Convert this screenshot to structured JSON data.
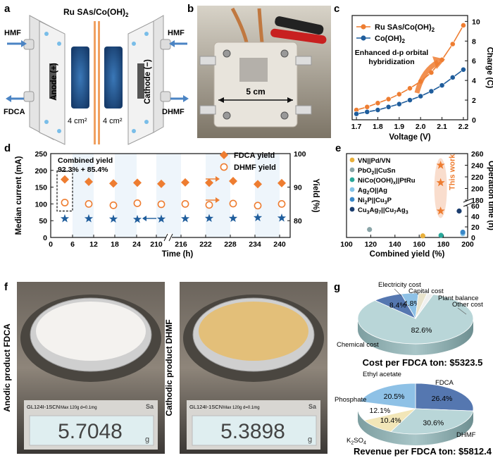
{
  "panels": {
    "a": {
      "label": "a",
      "title_main": "Ru SAs/Co(OH)",
      "title_sub": "2",
      "hmf_left": "HMF",
      "hmf_right": "HMF",
      "fdca": "FDCA",
      "dhmf": "DHMF",
      "anode": "Anode (+)",
      "cathode": "Cathode (−)",
      "area_left": "4 cm²",
      "area_right": "4 cm²"
    },
    "b": {
      "label": "b",
      "dimension": "5 cm"
    },
    "f": {
      "label": "f",
      "left_caption": "Anodic product FDCA",
      "right_caption": "Cathodic product DHMF",
      "left_scale_model": "GL124I-1SCN",
      "left_scale_spec": "Max 120g d=0.1mg",
      "right_scale_model": "GL124I-1SCN",
      "right_scale_spec": "Max 120g d=0.1mg",
      "left_reading": "5.7048",
      "right_reading": "5.3898",
      "unit": "g",
      "brand_left": "Sa",
      "brand_right": "Sa"
    }
  },
  "chart_data": [
    {
      "panel": "c",
      "type": "line",
      "title": "",
      "xlabel": "Voltage (V)",
      "ylabel": "Charge (C)",
      "xlim": [
        1.68,
        2.22
      ],
      "ylim": [
        0,
        10.6
      ],
      "xticks": [
        1.7,
        1.8,
        1.9,
        2.0,
        2.1,
        2.2
      ],
      "xtick_labels": [
        "1.7",
        "1.8",
        "1.9",
        "2.0",
        "2.1",
        "2.2"
      ],
      "yticks": [
        0,
        2,
        4,
        6,
        8,
        10
      ],
      "ytick_labels": [
        "0",
        "2",
        "4",
        "6",
        "8",
        "10"
      ],
      "x": [
        1.7,
        1.75,
        1.8,
        1.85,
        1.9,
        1.95,
        2.0,
        2.05,
        2.1,
        2.15,
        2.2
      ],
      "series": [
        {
          "name": "Ru SAs/Co(OH)2",
          "legend_main": "Ru SAs/Co(OH)",
          "legend_sub": "2",
          "color": "#ee7d31",
          "values": [
            1.0,
            1.3,
            1.7,
            2.1,
            2.6,
            3.2,
            3.9,
            4.8,
            6.1,
            7.7,
            9.6
          ]
        },
        {
          "name": "Co(OH)2",
          "legend_main": "Co(OH)",
          "legend_sub": "2",
          "color": "#1f5d9c",
          "values": [
            0.6,
            0.8,
            1.0,
            1.3,
            1.6,
            2.0,
            2.4,
            2.9,
            3.5,
            4.3,
            5.1
          ]
        }
      ],
      "annotation_line1": "Enhanced d-p orbital",
      "annotation_line2": "hybridization"
    },
    {
      "panel": "d",
      "type": "scatter",
      "xlabel": "Time (h)",
      "ylabel_left": "Median current (mA)",
      "ylabel_right": "Yield (%)",
      "left_ylim": [
        0,
        250
      ],
      "right_ylim": [
        75,
        100
      ],
      "left_yticks": [
        0,
        50,
        100,
        150,
        200,
        250
      ],
      "right_yticks": [
        80,
        90,
        100
      ],
      "xtick_labels": [
        "0",
        "6",
        "12",
        "18",
        "24",
        "210",
        "216",
        "222",
        "228",
        "234",
        "240"
      ],
      "combined_label": "Combined yield",
      "combined_value": "92.3% + 85.4%",
      "series": [
        {
          "name": "FDCA yield",
          "marker": "diamond",
          "axis": "right",
          "color": "#ee7d31",
          "values": [
            92.3,
            91.6,
            91.1,
            91.3,
            91.0,
            91.4,
            91.3,
            91.8,
            90.9,
            91.2
          ]
        },
        {
          "name": "DHMF yield",
          "marker": "circle-open",
          "axis": "right",
          "color": "#ee7d31",
          "values": [
            85.4,
            85.0,
            84.6,
            85.2,
            84.9,
            85.0,
            84.7,
            85.1,
            84.5,
            85.0
          ]
        },
        {
          "name": "Median current",
          "marker": "star",
          "axis": "left",
          "color": "#1f5d9c",
          "values": [
            56,
            56,
            55,
            54,
            55,
            56,
            57,
            57,
            59,
            58
          ]
        }
      ]
    },
    {
      "panel": "e",
      "type": "scatter",
      "xlabel": "Combined yield (%)",
      "ylabel": "Operation time (h)",
      "xlim": [
        100,
        200
      ],
      "xticks": [
        100,
        120,
        140,
        160,
        180,
        200
      ],
      "ytick_labels_lower": [
        "0",
        "20",
        "40",
        "60"
      ],
      "ytick_labels_upper": [
        "180",
        "200",
        "220",
        "240",
        "260"
      ],
      "this_work_label": "This work",
      "points": [
        {
          "name": "VN||Pd/VN",
          "name_html": "VN||Pd/VN",
          "color": "#e8b03c",
          "x": 163,
          "y": 3
        },
        {
          "name": "PbO2||CuSn",
          "name_main": "PbO",
          "name_sub": "2",
          "name_tail": "||CuSn",
          "color": "#8aa5a8",
          "x": 119,
          "y": 15
        },
        {
          "name": "NiCo(OOH)x||PtRu",
          "name_main": "NiCo(OOH)",
          "name_sub": "x",
          "name_tail": "||PtRu",
          "color": "#2aa89a",
          "x": 178,
          "y": 4
        },
        {
          "name": "Ag2O||Ag",
          "name_main": "Ag",
          "name_sub": "2",
          "name_tail": "O||Ag",
          "color": "#84c4e8",
          "x": 196,
          "y": 7
        },
        {
          "name": "Ni2P||Cu3P",
          "name_main": "Ni",
          "name_sub": "2",
          "name_tail": "P||Cu",
          "name_sub2": "3",
          "name_tail2": "P",
          "color": "#3a88c8",
          "x": 196,
          "y": 10
        },
        {
          "name": "Cu3Ag7||Cu7Ag3",
          "name_main": "Cu",
          "name_sub": "3",
          "name_tail": "Ag",
          "name_sub2": "7",
          "name_tail2": "||Cu",
          "name_sub3": "7",
          "name_tail3": "Ag",
          "name_sub4": "3",
          "color": "#1b3d6e",
          "x": 193,
          "y": 50
        }
      ],
      "this_work_points": [
        {
          "x": 177.7,
          "y": 240
        },
        {
          "x": 177.7,
          "y": 210
        },
        {
          "x": 177.7,
          "y": 50
        }
      ]
    },
    {
      "panel": "g_top",
      "type": "pie",
      "title": "Cost per FDCA ton: $5323.5",
      "slices": [
        {
          "label": "Chemical cost",
          "value": 82.6,
          "color": "#b9d6d8",
          "text": "82.6%"
        },
        {
          "label": "Electricity cost",
          "value": 8.4,
          "color": "#5577b0",
          "text": "8.4%"
        },
        {
          "label": "Capital cost",
          "value": 4.8,
          "color": "#8ec1e6",
          "text": "4.8%"
        },
        {
          "label": "Plant balance",
          "value": 2.4,
          "color": "#e8e3cc",
          "text": ""
        },
        {
          "label": "Other cost",
          "value": 1.8,
          "color": "#f0f0f0",
          "text": ""
        }
      ]
    },
    {
      "panel": "g_bottom",
      "type": "pie",
      "title": "Revenue per FDCA ton: $5812.4",
      "slices": [
        {
          "label": "FDCA",
          "value": 26.4,
          "color": "#5577b0",
          "text": "26.4%"
        },
        {
          "label": "DHMF",
          "value": 30.6,
          "color": "#b9d6d8",
          "text": "30.6%"
        },
        {
          "label": "K2SO4",
          "label_main": "K",
          "label_sub": "2",
          "label_tail": "SO",
          "label_sub2": "4",
          "value": 10.4,
          "color": "#f2e6b8",
          "text": "10.4%"
        },
        {
          "label": "Phosphate",
          "value": 12.1,
          "color": "#ffffff",
          "text": "12.1%"
        },
        {
          "label": "Ethyl acetate",
          "value": 20.5,
          "color": "#8ec1e6",
          "text": "20.5%"
        }
      ]
    }
  ],
  "labels": {
    "c": "c",
    "d": "d",
    "e": "e",
    "g": "g"
  }
}
